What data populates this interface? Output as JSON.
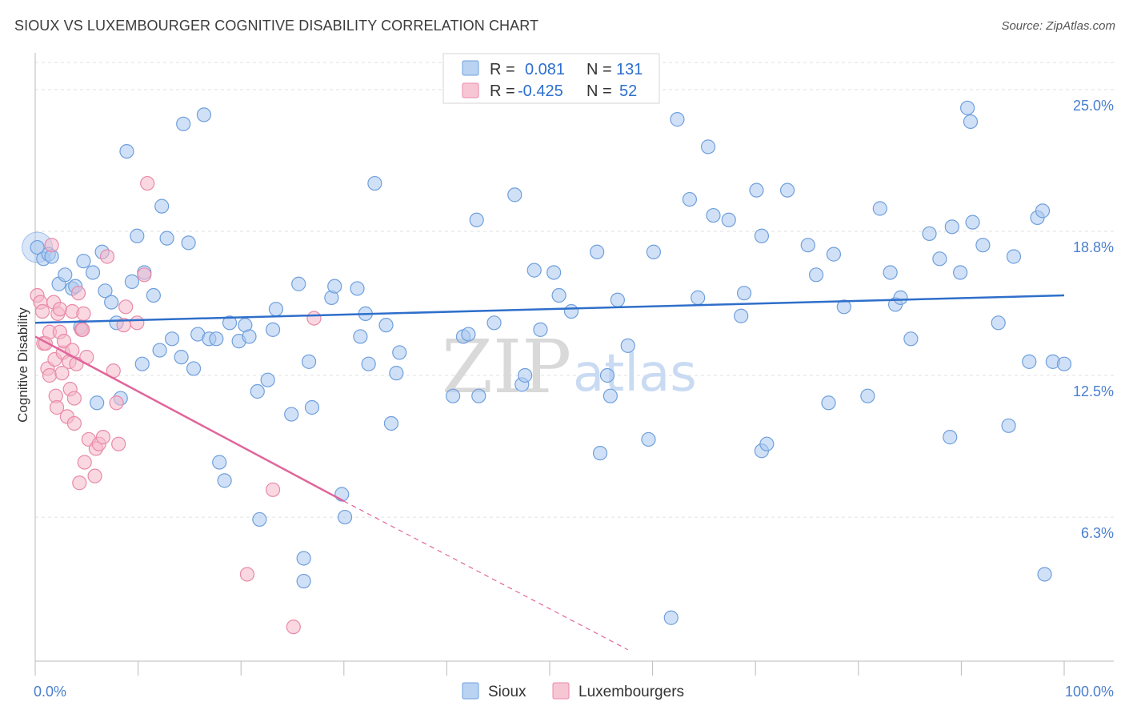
{
  "header": {
    "title": "SIOUX VS LUXEMBOURGER COGNITIVE DISABILITY CORRELATION CHART",
    "source": "Source: ZipAtlas.com"
  },
  "watermark": {
    "zip": "ZIP",
    "atlas": "atlas"
  },
  "legend": {
    "rows": [
      {
        "series": "Sioux",
        "r_label": "R =",
        "r_value": "0.081",
        "n_label": "N =",
        "n_value": "131",
        "color": "#a9c8f0"
      },
      {
        "series": "Luxembourgers",
        "r_label": "R =",
        "r_value": "-0.425",
        "n_label": "N =",
        "n_value": "52",
        "color": "#f5b8cb"
      }
    ]
  },
  "chart_data": {
    "type": "scatter",
    "title": "SIOUX VS LUXEMBOURGER COGNITIVE DISABILITY CORRELATION CHART",
    "xlabel": "",
    "ylabel": "Cognitive Disability",
    "xlim": [
      0,
      100
    ],
    "ylim": [
      0,
      26.4
    ],
    "x_tick_labels": [
      {
        "value": 0,
        "label": "0.0%"
      },
      {
        "value": 100,
        "label": "100.0%"
      }
    ],
    "y_tick_labels": [
      {
        "value": 6.3,
        "label": "6.3%"
      },
      {
        "value": 12.5,
        "label": "12.5%"
      },
      {
        "value": 18.8,
        "label": "18.8%"
      },
      {
        "value": 25.0,
        "label": "25.0%"
      }
    ],
    "grid": true,
    "legend_position": "bottom-center",
    "series": [
      {
        "name": "Sioux",
        "color": "#a9c8f0",
        "stroke": "#6f9fdc",
        "trend": {
          "color": "#2f6fca",
          "x0": 0,
          "y0": 14.8,
          "x1": 100,
          "y1": 16.0
        },
        "points": [
          [
            0.2,
            18.1
          ],
          [
            0.8,
            17.6
          ],
          [
            1.3,
            17.8
          ],
          [
            1.6,
            17.7
          ],
          [
            2.3,
            16.5
          ],
          [
            2.9,
            16.9
          ],
          [
            3.6,
            16.3
          ],
          [
            3.9,
            16.4
          ],
          [
            4.4,
            14.6
          ],
          [
            4.7,
            17.5
          ],
          [
            5.6,
            17.0
          ],
          [
            6.0,
            11.3
          ],
          [
            6.5,
            17.9
          ],
          [
            6.8,
            16.2
          ],
          [
            7.4,
            15.7
          ],
          [
            7.9,
            14.8
          ],
          [
            8.3,
            11.5
          ],
          [
            8.9,
            22.3
          ],
          [
            9.4,
            16.6
          ],
          [
            9.9,
            18.6
          ],
          [
            10.4,
            13.0
          ],
          [
            10.6,
            17.0
          ],
          [
            11.5,
            16.0
          ],
          [
            12.1,
            13.6
          ],
          [
            12.3,
            19.9
          ],
          [
            12.8,
            18.5
          ],
          [
            13.3,
            14.1
          ],
          [
            14.2,
            13.3
          ],
          [
            14.4,
            23.5
          ],
          [
            14.9,
            18.3
          ],
          [
            15.4,
            12.8
          ],
          [
            15.8,
            14.3
          ],
          [
            16.4,
            23.9
          ],
          [
            16.9,
            14.1
          ],
          [
            17.6,
            14.1
          ],
          [
            17.9,
            8.7
          ],
          [
            18.4,
            7.9
          ],
          [
            18.9,
            14.8
          ],
          [
            19.8,
            14.0
          ],
          [
            20.4,
            14.7
          ],
          [
            20.8,
            14.2
          ],
          [
            21.6,
            11.8
          ],
          [
            21.8,
            6.2
          ],
          [
            22.6,
            12.3
          ],
          [
            23.1,
            14.5
          ],
          [
            23.4,
            15.4
          ],
          [
            24.9,
            10.8
          ],
          [
            25.6,
            16.5
          ],
          [
            26.1,
            3.5
          ],
          [
            26.1,
            4.5
          ],
          [
            26.6,
            13.1
          ],
          [
            26.9,
            11.1
          ],
          [
            28.8,
            15.9
          ],
          [
            29.1,
            16.4
          ],
          [
            29.8,
            7.3
          ],
          [
            30.1,
            6.3
          ],
          [
            31.3,
            16.3
          ],
          [
            31.6,
            14.2
          ],
          [
            32.1,
            15.2
          ],
          [
            32.4,
            13.0
          ],
          [
            33.0,
            20.9
          ],
          [
            34.1,
            14.7
          ],
          [
            34.6,
            10.4
          ],
          [
            35.1,
            12.6
          ],
          [
            35.4,
            13.5
          ],
          [
            40.6,
            11.6
          ],
          [
            41.6,
            14.2
          ],
          [
            42.1,
            14.3
          ],
          [
            42.9,
            19.3
          ],
          [
            43.1,
            11.6
          ],
          [
            44.0,
            24.9
          ],
          [
            44.6,
            14.8
          ],
          [
            46.6,
            20.4
          ],
          [
            47.3,
            12.1
          ],
          [
            47.6,
            12.5
          ],
          [
            48.5,
            17.1
          ],
          [
            49.1,
            14.5
          ],
          [
            50.4,
            17.0
          ],
          [
            50.9,
            16.0
          ],
          [
            52.1,
            15.3
          ],
          [
            54.6,
            17.9
          ],
          [
            54.9,
            9.1
          ],
          [
            55.6,
            12.5
          ],
          [
            55.9,
            11.6
          ],
          [
            56.6,
            15.8
          ],
          [
            57.6,
            13.8
          ],
          [
            59.6,
            9.7
          ],
          [
            60.1,
            17.9
          ],
          [
            62.4,
            23.7
          ],
          [
            63.6,
            20.2
          ],
          [
            64.4,
            15.9
          ],
          [
            65.4,
            22.5
          ],
          [
            65.9,
            19.5
          ],
          [
            67.4,
            19.3
          ],
          [
            68.6,
            15.1
          ],
          [
            68.9,
            16.1
          ],
          [
            70.1,
            20.6
          ],
          [
            70.6,
            18.6
          ],
          [
            70.6,
            9.2
          ],
          [
            71.1,
            9.5
          ],
          [
            73.1,
            20.6
          ],
          [
            75.1,
            18.2
          ],
          [
            75.9,
            16.9
          ],
          [
            77.1,
            11.3
          ],
          [
            77.6,
            17.8
          ],
          [
            78.6,
            15.5
          ],
          [
            80.9,
            11.6
          ],
          [
            82.1,
            19.8
          ],
          [
            83.1,
            17.0
          ],
          [
            83.6,
            15.6
          ],
          [
            84.1,
            15.9
          ],
          [
            85.1,
            14.1
          ],
          [
            86.9,
            18.7
          ],
          [
            87.9,
            17.6
          ],
          [
            88.9,
            9.8
          ],
          [
            89.1,
            19.0
          ],
          [
            89.9,
            17.0
          ],
          [
            90.6,
            24.2
          ],
          [
            90.9,
            23.6
          ],
          [
            91.1,
            19.2
          ],
          [
            92.1,
            18.2
          ],
          [
            93.6,
            14.8
          ],
          [
            94.6,
            10.3
          ],
          [
            95.1,
            17.7
          ],
          [
            96.6,
            13.1
          ],
          [
            97.4,
            19.4
          ],
          [
            97.9,
            19.7
          ],
          [
            98.1,
            3.8
          ],
          [
            98.9,
            13.1
          ],
          [
            100.0,
            13.0
          ],
          [
            61.8,
            1.9
          ]
        ]
      },
      {
        "name": "Luxembourgers",
        "color": "#f5b8cb",
        "stroke": "#e88aa8",
        "trend": {
          "color": "#e0659a",
          "x0": 0,
          "y0": 14.2,
          "x1": 30,
          "y1": 7.0,
          "dash_x0": 30,
          "dash_y0": 7.0,
          "dash_x1": 57.6,
          "dash_y1": 0.5
        },
        "points": [
          [
            0.2,
            16.0
          ],
          [
            0.5,
            15.7
          ],
          [
            0.7,
            15.3
          ],
          [
            0.8,
            13.9
          ],
          [
            1.0,
            13.9
          ],
          [
            1.2,
            12.8
          ],
          [
            1.4,
            14.4
          ],
          [
            1.4,
            12.5
          ],
          [
            1.6,
            18.2
          ],
          [
            1.8,
            15.7
          ],
          [
            1.9,
            13.2
          ],
          [
            2.0,
            11.6
          ],
          [
            2.1,
            11.1
          ],
          [
            2.2,
            15.2
          ],
          [
            2.4,
            15.4
          ],
          [
            2.4,
            14.4
          ],
          [
            2.6,
            12.6
          ],
          [
            2.7,
            13.5
          ],
          [
            2.8,
            14.0
          ],
          [
            3.1,
            10.7
          ],
          [
            3.3,
            13.1
          ],
          [
            3.4,
            11.9
          ],
          [
            3.6,
            13.6
          ],
          [
            3.6,
            15.3
          ],
          [
            3.8,
            11.5
          ],
          [
            3.8,
            10.4
          ],
          [
            4.0,
            13.0
          ],
          [
            4.2,
            16.1
          ],
          [
            4.3,
            7.8
          ],
          [
            4.5,
            14.5
          ],
          [
            4.7,
            15.2
          ],
          [
            4.8,
            8.7
          ],
          [
            5.0,
            13.3
          ],
          [
            5.2,
            9.7
          ],
          [
            5.8,
            8.1
          ],
          [
            5.9,
            9.3
          ],
          [
            6.2,
            9.5
          ],
          [
            6.6,
            9.8
          ],
          [
            7.0,
            17.7
          ],
          [
            7.6,
            12.7
          ],
          [
            7.9,
            11.3
          ],
          [
            8.1,
            9.5
          ],
          [
            8.6,
            14.7
          ],
          [
            8.8,
            15.5
          ],
          [
            9.9,
            14.8
          ],
          [
            10.6,
            16.9
          ],
          [
            10.9,
            20.9
          ],
          [
            20.6,
            3.8
          ],
          [
            23.1,
            7.5
          ],
          [
            25.1,
            1.5
          ],
          [
            27.1,
            15.0
          ],
          [
            4.6,
            14.5
          ]
        ]
      }
    ]
  }
}
